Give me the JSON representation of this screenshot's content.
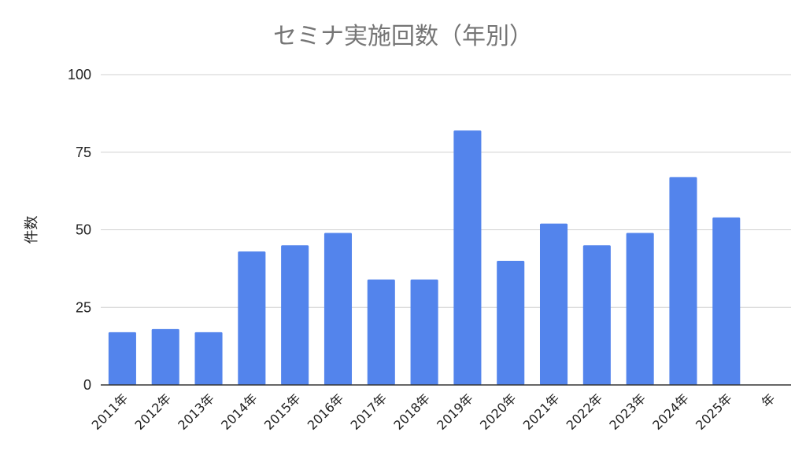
{
  "chart_data": {
    "type": "bar",
    "title": "セミナ実施回数（年別）",
    "ylabel": "件数",
    "xlabel": "",
    "ylim": [
      0,
      100
    ],
    "yticks": [
      0,
      25,
      50,
      75,
      100
    ],
    "categories": [
      "2011年",
      "2012年",
      "2013年",
      "2014年",
      "2015年",
      "2016年",
      "2017年",
      "2018年",
      "2019年",
      "2020年",
      "2021年",
      "2022年",
      "2023年",
      "2024年",
      "2025年",
      "年"
    ],
    "values": [
      17,
      18,
      17,
      43,
      45,
      49,
      34,
      34,
      82,
      40,
      52,
      45,
      49,
      67,
      54,
      null
    ],
    "bar_color": "#5384ec",
    "grid": true,
    "legend": "none"
  }
}
